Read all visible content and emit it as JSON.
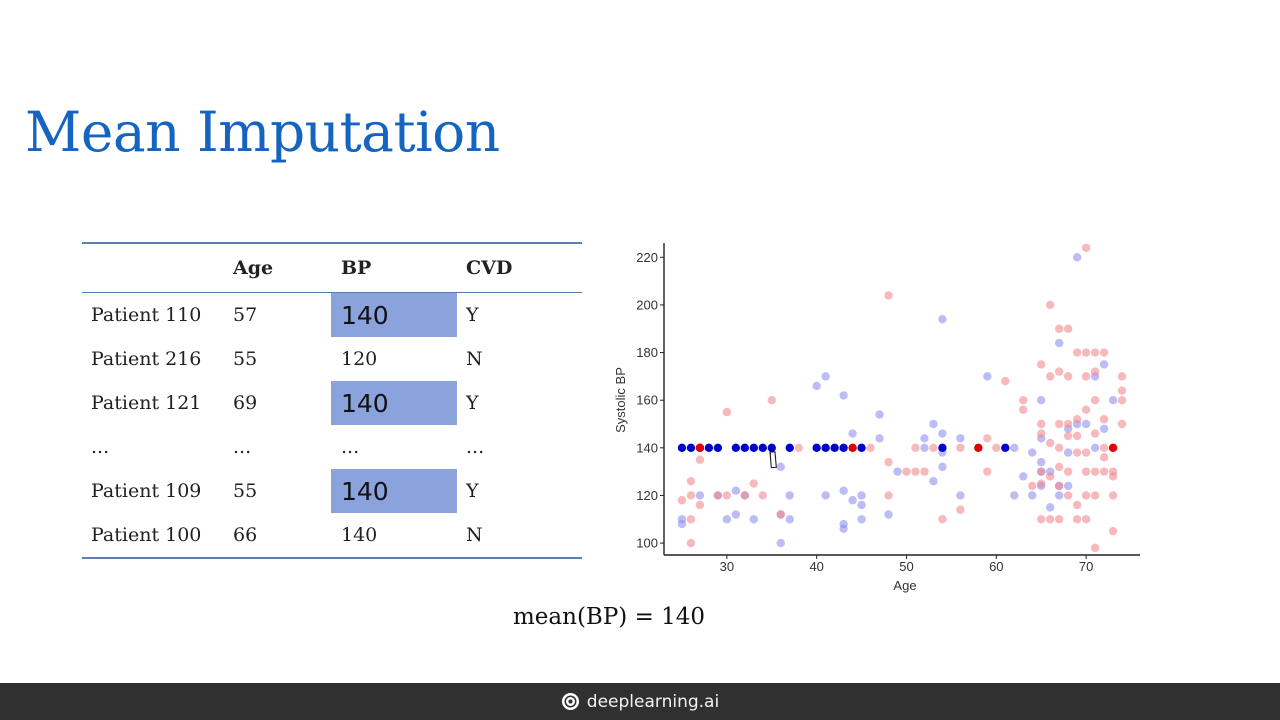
{
  "slide": {
    "title": "Mean Imputation"
  },
  "table": {
    "headers": [
      "",
      "Age",
      "BP",
      "CVD"
    ],
    "rows": [
      {
        "patient": "Patient 110",
        "age": "57",
        "bp": "140",
        "cvd": "Y",
        "imputed": true
      },
      {
        "patient": "Patient 216",
        "age": "55",
        "bp": "120",
        "cvd": "N",
        "imputed": false
      },
      {
        "patient": "Patient 121",
        "age": "69",
        "bp": "140",
        "cvd": "Y",
        "imputed": true
      },
      {
        "patient": "...",
        "age": "...",
        "bp": "...",
        "cvd": "...",
        "imputed": false
      },
      {
        "patient": "Patient 109",
        "age": "55",
        "bp": "140",
        "cvd": "Y",
        "imputed": true
      },
      {
        "patient": "Patient 100",
        "age": "66",
        "bp": "140",
        "cvd": "N",
        "imputed": false
      }
    ]
  },
  "formula": "mean(BP) = 140",
  "footer": {
    "brand": "deeplearning.ai"
  },
  "colors": {
    "title": "#1565c0",
    "imputed_cell": "#8aa3dc",
    "cvd_negative_point": "#8f8ff0",
    "cvd_positive_point": "#f28a8e",
    "imputed_cvd_negative_point": "#0000cc",
    "imputed_cvd_positive_point": "#e00000",
    "footer_bg": "#303030"
  },
  "chart_data": {
    "type": "scatter",
    "xlabel": "Age",
    "ylabel": "Systolic BP",
    "xlim": [
      23,
      76
    ],
    "ylim": [
      95,
      226
    ],
    "xticks": [
      30,
      40,
      50,
      60,
      70
    ],
    "yticks": [
      100,
      120,
      140,
      160,
      180,
      200,
      220
    ],
    "grid": false,
    "legend": false,
    "series": [
      {
        "kind": "observed",
        "cvd": "N",
        "points": [
          [
            25,
            108
          ],
          [
            25,
            110
          ],
          [
            27,
            120
          ],
          [
            29,
            120
          ],
          [
            30,
            110
          ],
          [
            31,
            112
          ],
          [
            31,
            122
          ],
          [
            32,
            120
          ],
          [
            33,
            110
          ],
          [
            36,
            100
          ],
          [
            36,
            112
          ],
          [
            36,
            132
          ],
          [
            37,
            110
          ],
          [
            37,
            120
          ],
          [
            40,
            166
          ],
          [
            41,
            170
          ],
          [
            41,
            120
          ],
          [
            43,
            162
          ],
          [
            43,
            122
          ],
          [
            43,
            106
          ],
          [
            43,
            108
          ],
          [
            44,
            146
          ],
          [
            44,
            118
          ],
          [
            45,
            116
          ],
          [
            45,
            120
          ],
          [
            45,
            110
          ],
          [
            47,
            154
          ],
          [
            47,
            144
          ],
          [
            48,
            112
          ],
          [
            49,
            130
          ],
          [
            52,
            144
          ],
          [
            52,
            140
          ],
          [
            53,
            150
          ],
          [
            53,
            126
          ],
          [
            54,
            194
          ],
          [
            54,
            146
          ],
          [
            54,
            138
          ],
          [
            54,
            132
          ],
          [
            56,
            144
          ],
          [
            56,
            120
          ],
          [
            59,
            170
          ],
          [
            62,
            140
          ],
          [
            62,
            120
          ],
          [
            63,
            128
          ],
          [
            64,
            138
          ],
          [
            64,
            120
          ],
          [
            65,
            160
          ],
          [
            65,
            144
          ],
          [
            65,
            134
          ],
          [
            65,
            130
          ],
          [
            65,
            124
          ],
          [
            66,
            130
          ],
          [
            66,
            115
          ],
          [
            67,
            184
          ],
          [
            67,
            124
          ],
          [
            67,
            120
          ],
          [
            68,
            148
          ],
          [
            68,
            138
          ],
          [
            68,
            124
          ],
          [
            69,
            220
          ],
          [
            69,
            150
          ],
          [
            70,
            150
          ],
          [
            71,
            170
          ],
          [
            71,
            140
          ],
          [
            72,
            175
          ],
          [
            72,
            148
          ],
          [
            73,
            160
          ]
        ]
      },
      {
        "kind": "observed",
        "cvd": "Y",
        "points": [
          [
            25,
            118
          ],
          [
            26,
            126
          ],
          [
            26,
            120
          ],
          [
            26,
            110
          ],
          [
            26,
            100
          ],
          [
            27,
            135
          ],
          [
            27,
            116
          ],
          [
            29,
            120
          ],
          [
            30,
            155
          ],
          [
            30,
            120
          ],
          [
            32,
            120
          ],
          [
            33,
            125
          ],
          [
            34,
            120
          ],
          [
            35,
            160
          ],
          [
            36,
            112
          ],
          [
            38,
            140
          ],
          [
            44,
            140
          ],
          [
            46,
            140
          ],
          [
            48,
            204
          ],
          [
            48,
            134
          ],
          [
            48,
            120
          ],
          [
            50,
            130
          ],
          [
            51,
            140
          ],
          [
            51,
            130
          ],
          [
            52,
            130
          ],
          [
            53,
            140
          ],
          [
            54,
            110
          ],
          [
            56,
            140
          ],
          [
            56,
            114
          ],
          [
            59,
            144
          ],
          [
            59,
            130
          ],
          [
            60,
            140
          ],
          [
            61,
            168
          ],
          [
            63,
            160
          ],
          [
            63,
            156
          ],
          [
            64,
            124
          ],
          [
            65,
            175
          ],
          [
            65,
            150
          ],
          [
            65,
            146
          ],
          [
            65,
            130
          ],
          [
            65,
            125
          ],
          [
            65,
            110
          ],
          [
            66,
            200
          ],
          [
            66,
            170
          ],
          [
            66,
            142
          ],
          [
            66,
            128
          ],
          [
            66,
            110
          ],
          [
            67,
            190
          ],
          [
            67,
            172
          ],
          [
            67,
            150
          ],
          [
            67,
            140
          ],
          [
            67,
            132
          ],
          [
            67,
            124
          ],
          [
            67,
            110
          ],
          [
            68,
            190
          ],
          [
            68,
            170
          ],
          [
            68,
            150
          ],
          [
            68,
            145
          ],
          [
            68,
            130
          ],
          [
            68,
            120
          ],
          [
            69,
            180
          ],
          [
            69,
            152
          ],
          [
            69,
            145
          ],
          [
            69,
            138
          ],
          [
            69,
            116
          ],
          [
            69,
            110
          ],
          [
            70,
            224
          ],
          [
            70,
            180
          ],
          [
            70,
            170
          ],
          [
            70,
            156
          ],
          [
            70,
            138
          ],
          [
            70,
            130
          ],
          [
            70,
            120
          ],
          [
            70,
            110
          ],
          [
            71,
            180
          ],
          [
            71,
            172
          ],
          [
            71,
            160
          ],
          [
            71,
            146
          ],
          [
            71,
            130
          ],
          [
            71,
            120
          ],
          [
            71,
            98
          ],
          [
            72,
            180
          ],
          [
            72,
            152
          ],
          [
            72,
            140
          ],
          [
            72,
            136
          ],
          [
            72,
            130
          ],
          [
            73,
            140
          ],
          [
            73,
            130
          ],
          [
            73,
            128
          ],
          [
            73,
            120
          ],
          [
            73,
            105
          ],
          [
            74,
            170
          ],
          [
            74,
            164
          ],
          [
            74,
            160
          ],
          [
            74,
            150
          ]
        ]
      },
      {
        "kind": "imputed",
        "cvd": "N",
        "points": [
          [
            25,
            140
          ],
          [
            26,
            140
          ],
          [
            27,
            140
          ],
          [
            28,
            140
          ],
          [
            29,
            140
          ],
          [
            31,
            140
          ],
          [
            32,
            140
          ],
          [
            33,
            140
          ],
          [
            34,
            140
          ],
          [
            35,
            140
          ],
          [
            37,
            140
          ],
          [
            40,
            140
          ],
          [
            41,
            140
          ],
          [
            42,
            140
          ],
          [
            43,
            140
          ],
          [
            45,
            140
          ],
          [
            54,
            140
          ],
          [
            61,
            140
          ]
        ]
      },
      {
        "kind": "imputed",
        "cvd": "Y",
        "points": [
          [
            27,
            140
          ],
          [
            44,
            140
          ],
          [
            58,
            140
          ],
          [
            73,
            140
          ]
        ]
      }
    ]
  }
}
